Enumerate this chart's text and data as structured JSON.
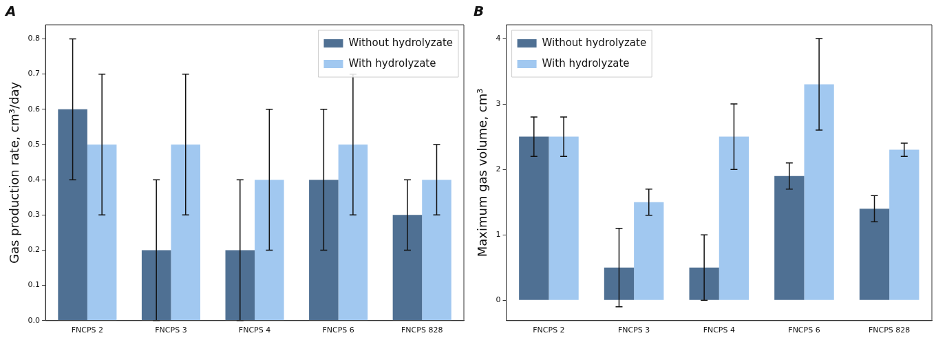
{
  "chart_data": [
    {
      "type": "bar",
      "title": "A",
      "ylabel": "Gas production rate, cm³/day",
      "categories": [
        "FNCPS 2",
        "FNCPS 3",
        "FNCPS 4",
        "FNCPS 6",
        "FNCPS 828"
      ],
      "series": [
        {
          "name": "Without hydrolyzate",
          "color": "#4f7093",
          "values": [
            0.6,
            0.2,
            0.2,
            0.4,
            0.3
          ],
          "errors": [
            0.2,
            0.2,
            0.2,
            0.2,
            0.1
          ]
        },
        {
          "name": "With hydrolyzate",
          "color": "#a1c8f0",
          "values": [
            0.5,
            0.5,
            0.4,
            0.5,
            0.4
          ],
          "errors": [
            0.2,
            0.2,
            0.2,
            0.2,
            0.1
          ]
        }
      ],
      "ylim": [
        0,
        0.84
      ],
      "yticks": [
        {
          "value": 0,
          "label": "0.0"
        },
        0.1,
        0.2,
        0.3,
        0.4,
        0.5,
        0.6,
        0.7,
        0.8
      ],
      "grid": false,
      "legend": "top right"
    },
    {
      "type": "bar",
      "title": "B",
      "ylabel": "Maximum gas volume, cm³",
      "categories": [
        "FNCPS 2",
        "FNCPS 3",
        "FNCPS 4",
        "FNCPS 6",
        "FNCPS 828"
      ],
      "series": [
        {
          "name": "Without hydrolyzate",
          "color": "#4f7093",
          "values": [
            2.5,
            0.5,
            0.5,
            1.9,
            1.4
          ],
          "errors": [
            0.3,
            0.6,
            0.5,
            0.2,
            0.2
          ]
        },
        {
          "name": "With hydrolyzate",
          "color": "#a1c8f0",
          "values": [
            2.5,
            1.5,
            2.5,
            3.3,
            2.3
          ],
          "errors": [
            0.3,
            0.2,
            0.5,
            0.7,
            0.1
          ]
        }
      ],
      "ylim": [
        -0.31,
        4.21
      ],
      "yticks": [
        0,
        1,
        2,
        3,
        4
      ],
      "grid": false,
      "legend": "top left"
    }
  ]
}
